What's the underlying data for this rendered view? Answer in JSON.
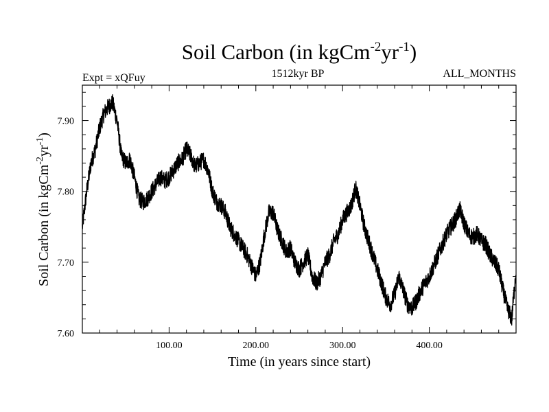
{
  "chart_data": {
    "type": "line",
    "title": {
      "main": "Soil Carbon (in kgCm",
      "sup1": "-2",
      "mid": "yr",
      "sup2": "-1",
      "end": ")"
    },
    "subtitle_left": "Expt = xQFuy",
    "subtitle_center": "1512kyr BP",
    "subtitle_right": "ALL_MONTHS",
    "xlabel": "Time (in years since start)",
    "ylabel": {
      "main": "Soil Carbon (in kgCm",
      "sup1": "-2",
      "mid": "yr",
      "sup2": "-1",
      "end": ")"
    },
    "xlim": [
      0,
      500
    ],
    "ylim": [
      7.6,
      7.95
    ],
    "x_ticks": [
      100,
      200,
      300,
      400
    ],
    "x_tick_labels": [
      "100.00",
      "200.00",
      "300.00",
      "400.00"
    ],
    "y_ticks": [
      7.6,
      7.7,
      7.8,
      7.9
    ],
    "y_tick_labels": [
      "7.60",
      "7.70",
      "7.80",
      "7.90"
    ],
    "series": [
      {
        "name": "Soil Carbon",
        "color": "#000000",
        "noise_amplitude": 0.012,
        "x": [
          0,
          5,
          10,
          15,
          20,
          25,
          30,
          35,
          40,
          45,
          50,
          55,
          60,
          65,
          70,
          75,
          80,
          85,
          90,
          95,
          100,
          105,
          110,
          115,
          120,
          125,
          130,
          135,
          140,
          145,
          150,
          155,
          160,
          165,
          170,
          175,
          180,
          185,
          190,
          195,
          200,
          205,
          210,
          215,
          220,
          225,
          230,
          235,
          240,
          245,
          250,
          255,
          260,
          265,
          270,
          275,
          280,
          285,
          290,
          295,
          300,
          305,
          310,
          315,
          320,
          325,
          330,
          335,
          340,
          345,
          350,
          355,
          360,
          365,
          370,
          375,
          380,
          385,
          390,
          395,
          400,
          405,
          410,
          415,
          420,
          425,
          430,
          435,
          440,
          445,
          450,
          455,
          460,
          465,
          470,
          475,
          480,
          485,
          490,
          495,
          500
        ],
        "y": [
          7.75,
          7.8,
          7.84,
          7.86,
          7.89,
          7.91,
          7.92,
          7.925,
          7.9,
          7.85,
          7.84,
          7.845,
          7.82,
          7.79,
          7.785,
          7.79,
          7.8,
          7.81,
          7.82,
          7.815,
          7.82,
          7.83,
          7.84,
          7.845,
          7.86,
          7.85,
          7.835,
          7.84,
          7.845,
          7.83,
          7.8,
          7.785,
          7.78,
          7.77,
          7.75,
          7.74,
          7.73,
          7.72,
          7.71,
          7.695,
          7.68,
          7.7,
          7.74,
          7.77,
          7.77,
          7.745,
          7.73,
          7.715,
          7.72,
          7.7,
          7.69,
          7.7,
          7.71,
          7.68,
          7.67,
          7.68,
          7.7,
          7.71,
          7.73,
          7.74,
          7.76,
          7.77,
          7.78,
          7.805,
          7.78,
          7.75,
          7.73,
          7.71,
          7.69,
          7.67,
          7.65,
          7.64,
          7.655,
          7.68,
          7.66,
          7.64,
          7.635,
          7.645,
          7.66,
          7.67,
          7.68,
          7.695,
          7.71,
          7.725,
          7.74,
          7.75,
          7.76,
          7.775,
          7.755,
          7.74,
          7.735,
          7.74,
          7.73,
          7.725,
          7.71,
          7.7,
          7.69,
          7.66,
          7.635,
          7.62,
          7.69
        ]
      }
    ]
  }
}
